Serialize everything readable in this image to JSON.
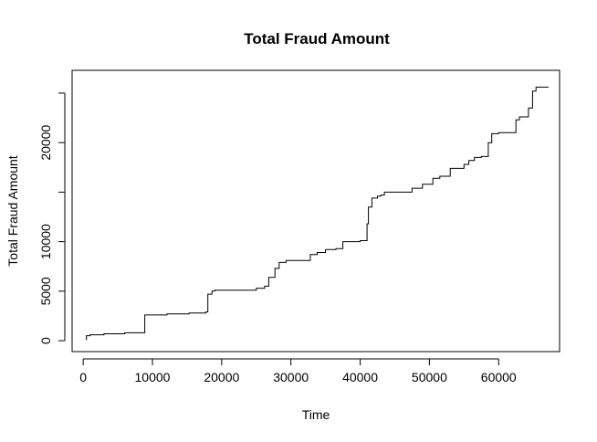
{
  "chart_data": {
    "type": "line",
    "title": "Total Fraud Amount",
    "xlabel": "Time",
    "ylabel": "Total Fraud Amount",
    "xlim": [
      -1600,
      68800
    ],
    "ylim": [
      -1100,
      27300
    ],
    "xticks": [
      0,
      10000,
      20000,
      30000,
      40000,
      50000,
      60000
    ],
    "xtick_labels": [
      "0",
      "10000",
      "20000",
      "30000",
      "40000",
      "50000",
      "60000"
    ],
    "yticks": [
      0,
      5000,
      10000,
      15000,
      20000,
      25000
    ],
    "ytick_labels": [
      "0",
      "5000",
      "10000",
      "",
      "20000",
      ""
    ],
    "grid": false,
    "legend": "none",
    "series": [
      {
        "color": "#000000",
        "x": [
          406,
          472,
          472,
          1000,
          1000,
          3000,
          3000,
          6000,
          6000,
          8900,
          8900,
          12100,
          12100,
          15300,
          15300,
          17700,
          17700,
          18000,
          18000,
          18600,
          18600,
          19000,
          19000,
          25000,
          25000,
          26200,
          26200,
          26800,
          26800,
          27700,
          27700,
          28300,
          28300,
          29300,
          29300,
          32800,
          32800,
          33800,
          33800,
          35000,
          35000,
          36500,
          36500,
          37500,
          37500,
          40000,
          40000,
          41000,
          41000,
          41200,
          41200,
          41700,
          41700,
          42500,
          42500,
          43000,
          43000,
          43500,
          43500,
          47500,
          47500,
          49000,
          49000,
          50500,
          50500,
          51500,
          51500,
          53000,
          53000,
          55000,
          55000,
          55700,
          55700,
          56500,
          56500,
          57500,
          57500,
          58500,
          58500,
          59000,
          59000,
          60000,
          60000,
          62500,
          62500,
          63000,
          63000,
          64300,
          64300,
          64900,
          64900,
          65400,
          65400,
          67200
        ],
        "y": [
          100,
          100,
          500,
          500,
          600,
          600,
          700,
          700,
          800,
          800,
          2600,
          2600,
          2700,
          2700,
          2800,
          2800,
          2900,
          2900,
          4700,
          4700,
          5000,
          5000,
          5100,
          5100,
          5300,
          5300,
          5500,
          5500,
          6400,
          6400,
          7300,
          7300,
          7900,
          7900,
          8100,
          8100,
          8700,
          8700,
          8900,
          8900,
          9200,
          9200,
          9300,
          9300,
          10000,
          10000,
          10100,
          10100,
          11800,
          11800,
          13500,
          13500,
          14400,
          14400,
          14600,
          14600,
          14700,
          14700,
          15000,
          15000,
          15400,
          15400,
          15800,
          15800,
          16400,
          16400,
          16600,
          16600,
          17400,
          17400,
          17800,
          17800,
          18200,
          18200,
          18500,
          18500,
          18600,
          18600,
          20000,
          20000,
          20900,
          20900,
          21000,
          21000,
          22300,
          22300,
          22600,
          22600,
          23500,
          23500,
          25200,
          25200,
          25600,
          25600
        ]
      }
    ]
  }
}
